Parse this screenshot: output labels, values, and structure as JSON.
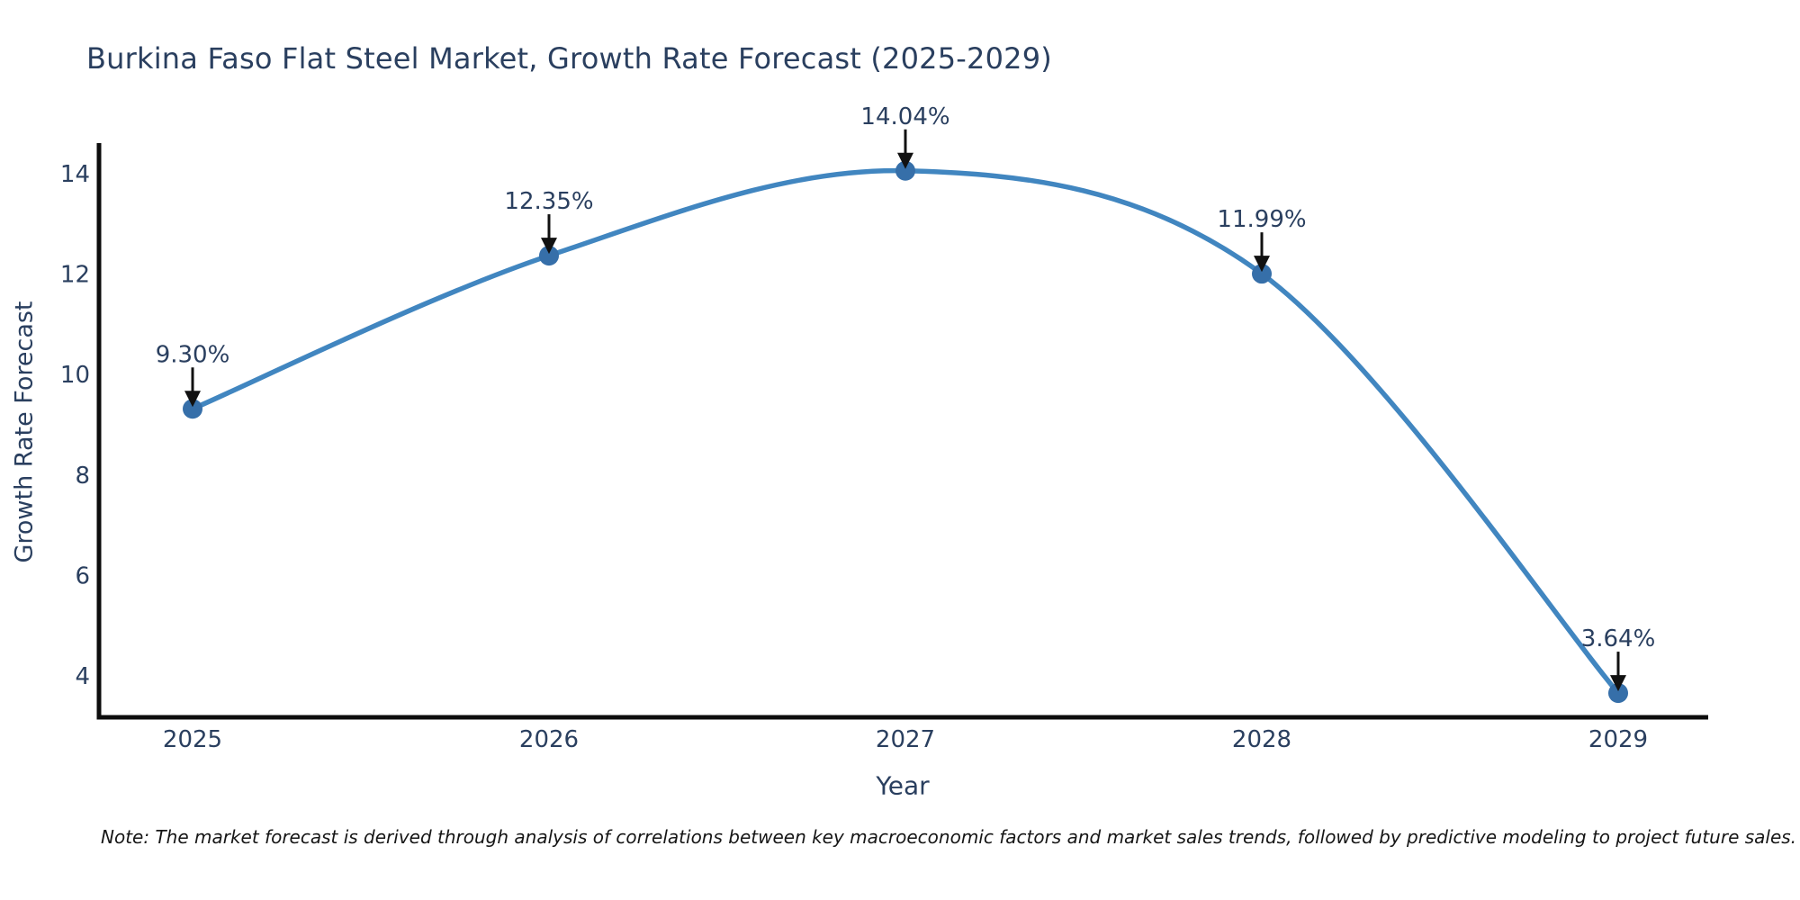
{
  "note": "Note: The market forecast is derived through analysis of correlations between key macroeconomic factors and market sales trends, followed by predictive modeling to project future sales.",
  "chart_data": {
    "type": "line",
    "title": "Burkina Faso Flat Steel Market, Growth Rate Forecast (2025-2029)",
    "xlabel": "Year",
    "ylabel": "Growth Rate Forecast",
    "x": [
      2025,
      2026,
      2027,
      2028,
      2029
    ],
    "series": [
      {
        "name": "Growth Rate Forecast",
        "values": [
          9.3,
          12.35,
          14.04,
          11.99,
          3.64
        ],
        "point_labels": [
          "9.30%",
          "12.35%",
          "14.04%",
          "11.99%",
          "3.64%"
        ]
      }
    ],
    "yticks": [
      4,
      6,
      8,
      10,
      12,
      14
    ],
    "ylim": [
      3.1,
      14.6
    ],
    "xlim": [
      2024.74,
      2029.25
    ],
    "grid": false,
    "legend_position": "none",
    "line_shape": "spline",
    "marker": "circle",
    "annotations_arrow": "down",
    "colors": {
      "line": "#4186c0",
      "marker": "#366fa9",
      "axis": "#0d0d0d",
      "text": "#2a3f5f",
      "arrow": "#111111",
      "background": "#ffffff"
    }
  }
}
